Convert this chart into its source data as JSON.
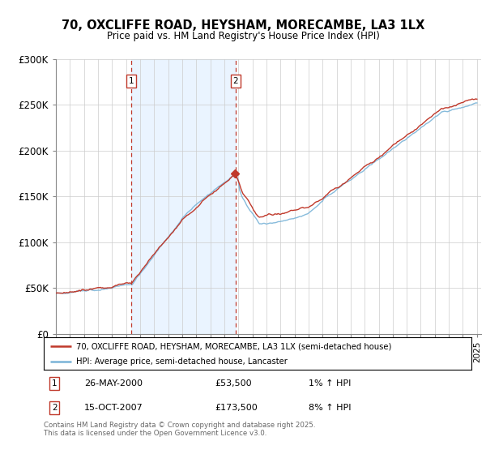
{
  "title": "70, OXCLIFFE ROAD, HEYSHAM, MORECAMBE, LA3 1LX",
  "subtitle": "Price paid vs. HM Land Registry's House Price Index (HPI)",
  "legend_line1": "70, OXCLIFFE ROAD, HEYSHAM, MORECAMBE, LA3 1LX (semi-detached house)",
  "legend_line2": "HPI: Average price, semi-detached house, Lancaster",
  "footer": "Contains HM Land Registry data © Crown copyright and database right 2025.\nThis data is licensed under the Open Government Licence v3.0.",
  "purchase1_label": "1",
  "purchase1_date": "26-MAY-2000",
  "purchase1_price": "£53,500",
  "purchase1_hpi": "1% ↑ HPI",
  "purchase1_year": 2000.38,
  "purchase1_value": 53500,
  "purchase2_label": "2",
  "purchase2_date": "15-OCT-2007",
  "purchase2_price": "£173,500",
  "purchase2_hpi": "8% ↑ HPI",
  "purchase2_year": 2007.79,
  "purchase2_value": 173500,
  "hpi_color": "#7ab4d8",
  "price_color": "#c0392b",
  "vline_color": "#c0392b",
  "bg_shade_color": "#ddeeff",
  "ylim": [
    0,
    300000
  ],
  "yticks": [
    0,
    50000,
    100000,
    150000,
    200000,
    250000,
    300000
  ],
  "ytick_labels": [
    "£0",
    "£50K",
    "£100K",
    "£150K",
    "£200K",
    "£250K",
    "£300K"
  ],
  "year_start": 1995,
  "year_end": 2025
}
